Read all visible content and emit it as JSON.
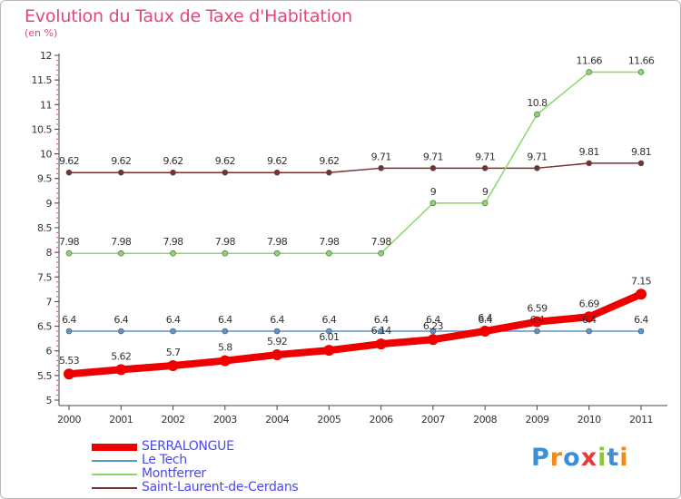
{
  "chart_data": {
    "type": "line",
    "title": "Evolution du Taux de Taxe d'Habitation",
    "subtitle": "(en %)",
    "x": [
      "2000",
      "2001",
      "2002",
      "2003",
      "2004",
      "2005",
      "2006",
      "2007",
      "2008",
      "2009",
      "2010",
      "2011"
    ],
    "ylim": [
      5,
      12
    ],
    "yticks": [
      "5",
      "5.5",
      "6",
      "6.5",
      "7",
      "7.5",
      "8",
      "8.5",
      "9",
      "9.5",
      "10",
      "10.5",
      "11",
      "11.5",
      "12"
    ],
    "grid": false,
    "legend_position": "bottom-left",
    "series": [
      {
        "name": "SERRALONGUE",
        "color": "#ee0000",
        "values": [
          5.53,
          5.62,
          5.7,
          5.8,
          5.92,
          6.01,
          6.14,
          6.23,
          6.4,
          6.59,
          6.69,
          7.15
        ],
        "labels": [
          "5.53",
          "5.62",
          "5.7",
          "5.8",
          "5.92",
          "6.01",
          "6.14",
          "6.23",
          "6.4",
          "6.59",
          "6.69",
          "7.15"
        ]
      },
      {
        "name": "Le Tech",
        "color": "#5a94c8",
        "values": [
          6.4,
          6.4,
          6.4,
          6.4,
          6.4,
          6.4,
          6.4,
          6.4,
          6.4,
          6.4,
          6.4,
          6.4
        ],
        "labels": [
          "6.4",
          "6.4",
          "6.4",
          "6.4",
          "6.4",
          "6.4",
          "6.4",
          "6.4",
          "6.4",
          "6.4",
          "6.4",
          "6.4"
        ]
      },
      {
        "name": "Montferrer",
        "color": "#8bd86a",
        "values": [
          7.98,
          7.98,
          7.98,
          7.98,
          7.98,
          7.98,
          7.98,
          9,
          9,
          10.8,
          11.66,
          11.66
        ],
        "labels": [
          "7.98",
          "7.98",
          "7.98",
          "7.98",
          "7.98",
          "7.98",
          "7.98",
          "9",
          "9",
          "10.8",
          "11.66",
          "11.66"
        ]
      },
      {
        "name": "Saint-Laurent-de-Cerdans",
        "color": "#7a3030",
        "values": [
          9.62,
          9.62,
          9.62,
          9.62,
          9.62,
          9.62,
          9.71,
          9.71,
          9.71,
          9.71,
          9.81,
          9.81
        ],
        "labels": [
          "9.62",
          "9.62",
          "9.62",
          "9.62",
          "9.62",
          "9.62",
          "9.71",
          "9.71",
          "9.71",
          "9.71",
          "9.81",
          "9.81"
        ]
      }
    ]
  },
  "legend": {
    "items": [
      {
        "label": "SERRALONGUE",
        "color": "#ee0000"
      },
      {
        "label": "Le Tech",
        "color": "#5a94c8"
      },
      {
        "label": "Montferrer",
        "color": "#8bd86a"
      },
      {
        "label": "Saint-Laurent-de-Cerdans",
        "color": "#7a3030"
      }
    ]
  },
  "logo": {
    "text": "Proxiti"
  }
}
